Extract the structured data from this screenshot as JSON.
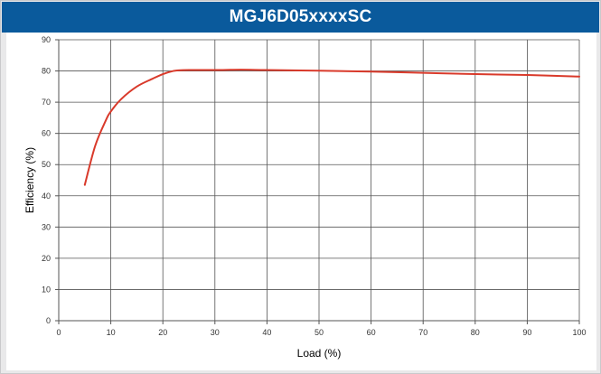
{
  "chart_data": {
    "type": "line",
    "title": "MGJ6D05xxxxSC",
    "xlabel": "Load (%)",
    "ylabel": "Efficiency (%)",
    "xlim": [
      0,
      100
    ],
    "ylim": [
      0,
      90
    ],
    "x_ticks": [
      0,
      10,
      20,
      30,
      40,
      50,
      60,
      70,
      80,
      90,
      100
    ],
    "y_ticks": [
      0,
      10,
      20,
      30,
      40,
      50,
      60,
      70,
      80,
      90
    ],
    "grid": true,
    "series": [
      {
        "color": "#d93a2b",
        "x": [
          5,
          7,
          9,
          10,
          12,
          15,
          18,
          20,
          22,
          23,
          25,
          30,
          35,
          40,
          50,
          60,
          70,
          80,
          90,
          100
        ],
        "y": [
          43.5,
          56,
          64,
          67,
          71,
          75,
          77.5,
          79,
          80,
          80.2,
          80.3,
          80.3,
          80.4,
          80.3,
          80.1,
          79.8,
          79.4,
          79.0,
          78.7,
          78.2
        ]
      }
    ]
  }
}
